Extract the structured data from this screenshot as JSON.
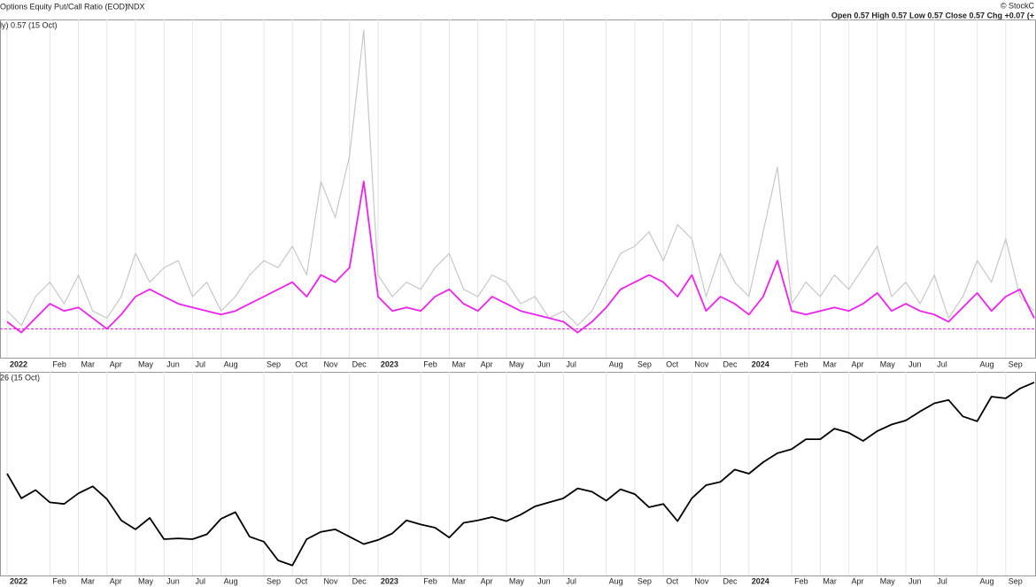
{
  "header": {
    "title": "Options Equity Put/Call Ratio (EOD)",
    "exchange": "INDX",
    "copyright": "© StockC",
    "quote": "Open 0.57 High 0.57 Low 0.57 Close 0.57 Chg +0.07 (+"
  },
  "chart_data": [
    {
      "type": "line",
      "label": "ly) 0.57 (15 Oct)",
      "categories": [
        "2022",
        null,
        null,
        "Feb",
        null,
        "Mar",
        null,
        "Apr",
        null,
        "May",
        null,
        "Jun",
        null,
        "Jul",
        null,
        "Aug",
        null,
        null,
        "Sep",
        null,
        "Oct",
        null,
        "Nov",
        null,
        "Dec",
        null,
        "2023",
        null,
        null,
        "Feb",
        null,
        "Mar",
        null,
        "Apr",
        null,
        "May",
        null,
        "Jun",
        null,
        "Jul",
        null,
        null,
        "Aug",
        null,
        "Sep",
        null,
        "Oct",
        null,
        "Nov",
        null,
        "Dec",
        null,
        "2024",
        null,
        null,
        "Feb",
        null,
        "Mar",
        null,
        "Apr",
        null,
        "May",
        null,
        "Jun",
        null,
        "Jul",
        null,
        null,
        "Aug",
        null,
        "Sep",
        null,
        null
      ],
      "series": [
        {
          "color": "#c8c8c8",
          "values": [
            0.62,
            0.58,
            0.66,
            0.7,
            0.64,
            0.72,
            0.62,
            0.6,
            0.66,
            0.78,
            0.7,
            0.74,
            0.76,
            0.66,
            0.7,
            0.62,
            0.66,
            0.72,
            0.76,
            0.74,
            0.8,
            0.72,
            0.98,
            0.88,
            1.05,
            1.4,
            0.72,
            0.66,
            0.7,
            0.68,
            0.74,
            0.78,
            0.68,
            0.66,
            0.72,
            0.7,
            0.64,
            0.66,
            0.6,
            0.62,
            0.58,
            0.62,
            0.7,
            0.78,
            0.8,
            0.84,
            0.76,
            0.86,
            0.82,
            0.66,
            0.78,
            0.7,
            0.66,
            0.84,
            1.02,
            0.64,
            0.7,
            0.66,
            0.72,
            0.68,
            0.74,
            0.8,
            0.66,
            0.7,
            0.64,
            0.72,
            0.6,
            0.66,
            0.76,
            0.7,
            0.82,
            0.66,
            0.62
          ]
        },
        {
          "color": "#ee22ee",
          "values": [
            0.59,
            0.56,
            0.6,
            0.64,
            0.62,
            0.63,
            0.6,
            0.57,
            0.61,
            0.66,
            0.68,
            0.66,
            0.64,
            0.63,
            0.62,
            0.61,
            0.62,
            0.64,
            0.66,
            0.68,
            0.7,
            0.66,
            0.72,
            0.7,
            0.74,
            0.98,
            0.66,
            0.62,
            0.63,
            0.62,
            0.66,
            0.68,
            0.64,
            0.62,
            0.66,
            0.64,
            0.62,
            0.61,
            0.6,
            0.59,
            0.56,
            0.59,
            0.63,
            0.68,
            0.7,
            0.72,
            0.7,
            0.66,
            0.72,
            0.62,
            0.66,
            0.64,
            0.61,
            0.66,
            0.76,
            0.62,
            0.61,
            0.62,
            0.63,
            0.62,
            0.64,
            0.67,
            0.62,
            0.64,
            0.62,
            0.61,
            0.59,
            0.63,
            0.67,
            0.62,
            0.66,
            0.68,
            0.6
          ]
        }
      ],
      "ylim": [
        0.5,
        1.42
      ],
      "hline": 0.57,
      "hline_color": "#ee22ee",
      "grid": true
    },
    {
      "type": "line",
      "label": "26 (15 Oct)",
      "categories": [
        "2022",
        null,
        null,
        "Feb",
        null,
        "Mar",
        null,
        "Apr",
        null,
        "May",
        null,
        "Jun",
        null,
        "Jul",
        null,
        "Aug",
        null,
        null,
        "Sep",
        null,
        "Oct",
        null,
        "Nov",
        null,
        "Dec",
        null,
        "2023",
        null,
        null,
        "Feb",
        null,
        "Mar",
        null,
        "Apr",
        null,
        "May",
        null,
        "Jun",
        null,
        "Jul",
        null,
        null,
        "Aug",
        null,
        "Sep",
        null,
        "Oct",
        null,
        "Nov",
        null,
        "Dec",
        null,
        "2024",
        null,
        null,
        "Feb",
        null,
        "Mar",
        null,
        "Apr",
        null,
        "May",
        null,
        "Jun",
        null,
        "Jul",
        null,
        null,
        "Aug",
        null,
        "Sep",
        null,
        null
      ],
      "series": [
        {
          "color": "#000000",
          "values": [
            4700,
            4400,
            4500,
            4350,
            4330,
            4460,
            4545,
            4390,
            4130,
            4020,
            4160,
            3900,
            3910,
            3900,
            3960,
            4150,
            4230,
            3930,
            3870,
            3640,
            3580,
            3900,
            3990,
            4020,
            3930,
            3840,
            3890,
            3970,
            4130,
            4080,
            4040,
            3920,
            4100,
            4130,
            4170,
            4120,
            4200,
            4300,
            4350,
            4400,
            4520,
            4480,
            4370,
            4510,
            4450,
            4290,
            4330,
            4120,
            4400,
            4560,
            4600,
            4750,
            4700,
            4840,
            4950,
            5000,
            5120,
            5120,
            5250,
            5200,
            5100,
            5220,
            5300,
            5350,
            5460,
            5560,
            5600,
            5400,
            5340,
            5640,
            5620,
            5740,
            5815
          ]
        }
      ],
      "ylim": [
        3500,
        5900
      ],
      "grid": true
    }
  ]
}
